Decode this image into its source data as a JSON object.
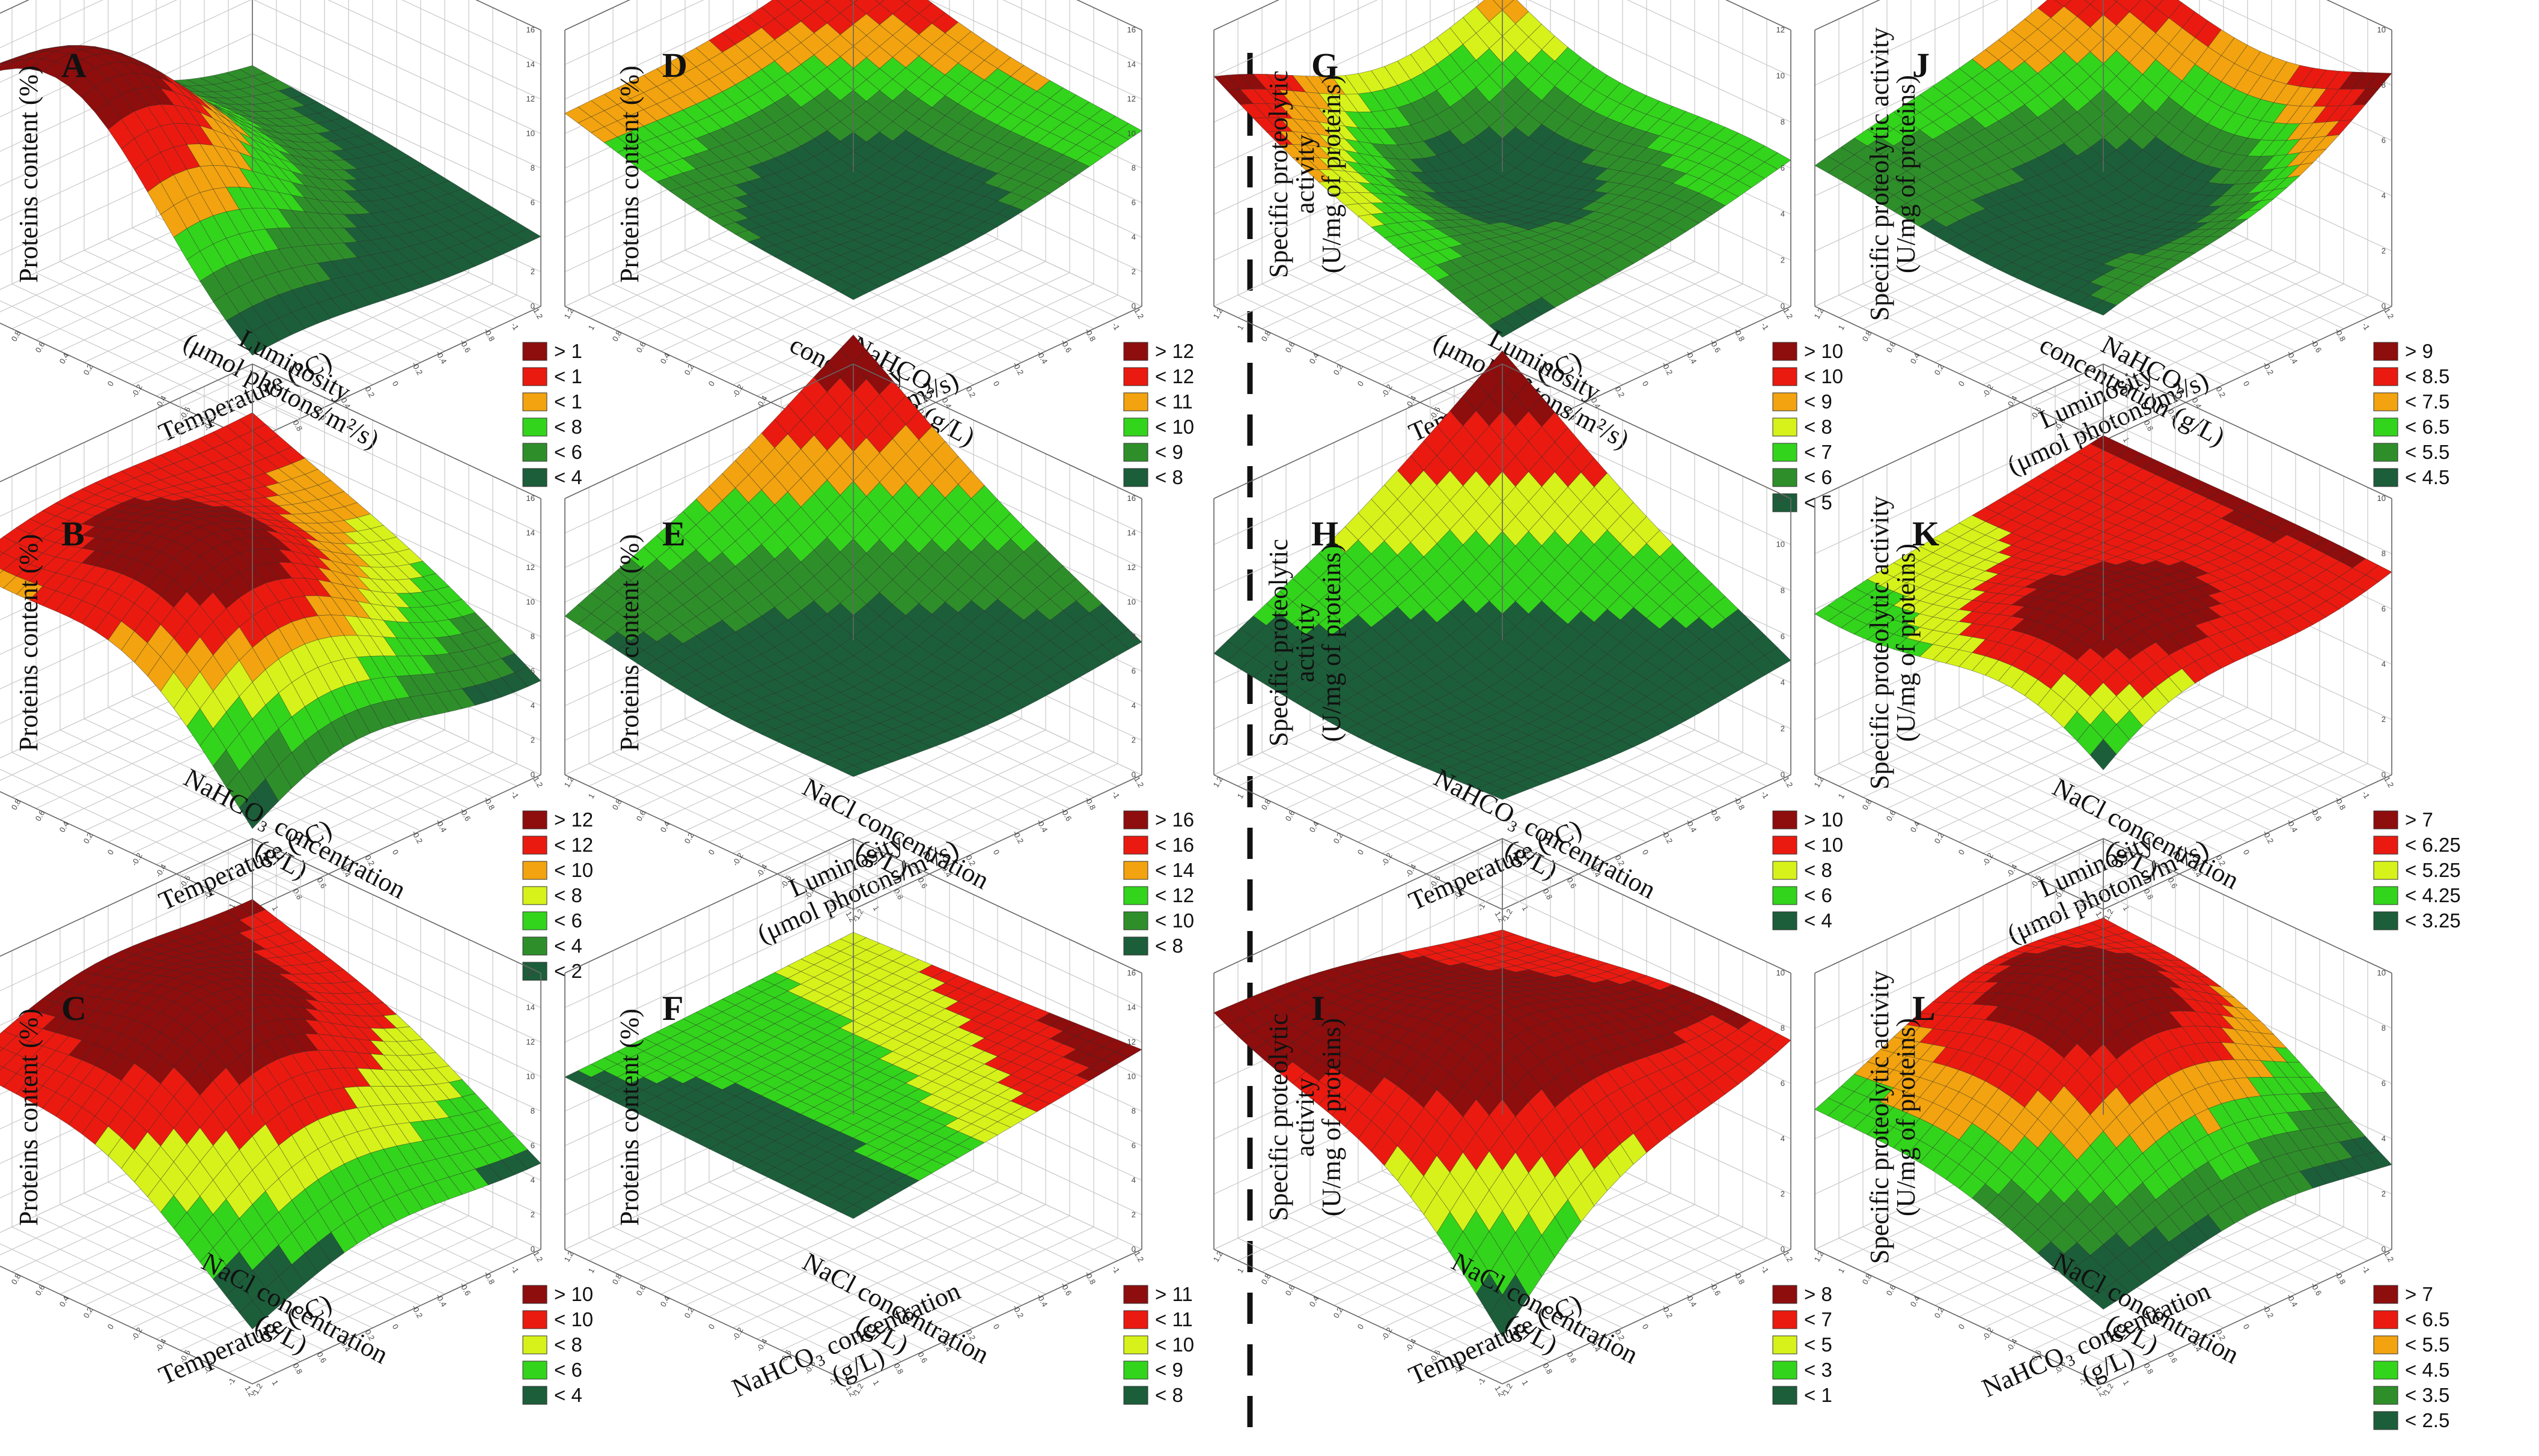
{
  "divider": "dashed-vertical",
  "colors": {
    "c0": "#1c5e3a",
    "c1": "#2e8f2a",
    "c2": "#33d41c",
    "c3": "#d6f21a",
    "c4": "#f2a30f",
    "c5": "#ea1a10",
    "c6": "#8e0d0d",
    "grid": "#c8c8c8",
    "axis": "#666666"
  },
  "chart_data": [
    {
      "id": "A",
      "type": "surface3d",
      "title": "A",
      "ylabel": "Proteins content (%)",
      "xlabel": "Temperature (°C)",
      "zlabel": "Luminosity (μmol photons/m²/s)",
      "zlabel_lines": [
        "Luminosity",
        "(μmol photons/m²/s)"
      ],
      "ylim": [
        0,
        16
      ],
      "yticks": [
        "0",
        "2",
        "4",
        "6",
        "8",
        "10",
        "12",
        "14",
        "16"
      ],
      "xticks": [
        "-1.2",
        "-1",
        "-0.8",
        "-0.6",
        "-0.4",
        "-0.2",
        "0",
        "0.2",
        "0.4",
        "0.6",
        "0.8",
        "1",
        "1.2"
      ],
      "zticks": [
        "-1.2",
        "-1",
        "-0.8",
        "-0.6",
        "-0.4",
        "-0.2",
        "0",
        "0.2",
        "0.4",
        "0.6",
        "0.8",
        "1",
        "1.2"
      ],
      "legend": [
        "> 1",
        "< 1",
        "< 1",
        "< 8",
        "< 6",
        "< 4"
      ],
      "corners": {
        "front": 3.5,
        "left": 4.0,
        "right": 7.5,
        "back": 6.0
      },
      "peak": {
        "u": -0.3,
        "v": 0.8,
        "value": 16.0
      },
      "surface_gridlines": "dark"
    },
    {
      "id": "B",
      "type": "surface3d",
      "title": "B",
      "ylabel": "Proteins content (%)",
      "xlabel": "Temperature (°C)",
      "zlabel": "NaHCO₃ concentration (g/L)",
      "zlabel_lines": [
        "NaHCO₃ concentration",
        "(g/L)"
      ],
      "ylim": [
        0,
        16
      ],
      "yticks": [
        "0",
        "2",
        "4",
        "6",
        "8",
        "10",
        "12",
        "14",
        "16"
      ],
      "xticks": [
        "-1.2",
        "-1",
        "-0.8",
        "-0.6",
        "-0.4",
        "-0.2",
        "0",
        "0.2",
        "0.4",
        "0.6",
        "0.8",
        "1",
        "1.2"
      ],
      "zticks": [
        "-1.2",
        "-1",
        "-0.8",
        "-0.6",
        "-0.4",
        "-0.2",
        "0",
        "0.2",
        "0.4",
        "0.6",
        "0.8",
        "1",
        "1.2"
      ],
      "legend": [
        "> 12",
        "< 12",
        "< 10",
        "< 8",
        "< 6",
        "< 4",
        "< 2"
      ],
      "corners": {
        "front": 2.0,
        "left": 5.0,
        "right": 11.0,
        "back": 13.0
      },
      "peak": {
        "u": 0.2,
        "v": 0.4,
        "value": 14.5
      },
      "surface_gridlines": "dark"
    },
    {
      "id": "C",
      "type": "surface3d",
      "title": "C",
      "ylabel": "Proteins content (%)",
      "xlabel": "Temperature (°C)",
      "zlabel": "NaCl concentration (g/L)",
      "zlabel_lines": [
        "NaCl concentration",
        "(g/L)"
      ],
      "ylim": [
        0,
        16
      ],
      "yticks": [
        "0",
        "2",
        "4",
        "6",
        "8",
        "10",
        "12",
        "14",
        "16"
      ],
      "xticks": [
        "-1.2",
        "-1",
        "-0.8",
        "-0.6",
        "-0.4",
        "-0.2",
        "0",
        "0.2",
        "0.4",
        "0.6",
        "0.8",
        "1",
        "1.2"
      ],
      "zticks": [
        "-1.2",
        "-1",
        "-0.8",
        "-0.6",
        "-0.4",
        "-0.2",
        "0",
        "0.2",
        "0.4",
        "0.6",
        "0.8",
        "1",
        "1.2"
      ],
      "legend": [
        "> 10",
        "< 10",
        "< 8",
        "< 6",
        "< 4"
      ],
      "corners": {
        "front": 2.0,
        "left": 4.5,
        "right": 9.5,
        "back": 12.0
      },
      "peak": {
        "u": 0.0,
        "v": 0.2,
        "value": 14.0
      },
      "surface_gridlines": "dark"
    },
    {
      "id": "D",
      "type": "surface3d",
      "title": "D",
      "ylabel": "Proteins content (%)",
      "xlabel": "Luminosity (μmol photons/m²/s)",
      "xlabel_lines": [
        "Luminosity",
        "(μmol photons/m²/s)"
      ],
      "zlabel": "NaHCO₃ concentration (g/L)",
      "zlabel_lines": [
        "NaHCO₃",
        "concentration (g/L)"
      ],
      "ylim": [
        0,
        16
      ],
      "yticks": [
        "0",
        "2",
        "4",
        "6",
        "8",
        "10",
        "12",
        "14",
        "16"
      ],
      "xticks": [
        "-1.2",
        "-1",
        "-0.8",
        "-0.6",
        "-0.4",
        "-0.2",
        "0",
        "0.2",
        "0.4",
        "0.6",
        "0.8",
        "1",
        "1.2"
      ],
      "zticks": [
        "-1.2",
        "-1",
        "-0.8",
        "-0.6",
        "-0.4",
        "-0.2",
        "0",
        "0.2",
        "0.4",
        "0.6",
        "0.8",
        "1",
        "1.2"
      ],
      "legend": [
        "> 12",
        "< 12",
        "< 11",
        "< 10",
        "< 9",
        "< 8"
      ],
      "corners": {
        "front": 8.5,
        "left": 10.5,
        "right": 11.5,
        "back": 13.5
      },
      "peak": {
        "u": 0.0,
        "v": 0.0,
        "value": 8.0
      },
      "surface_gridlines": "dark"
    },
    {
      "id": "E",
      "type": "surface3d",
      "title": "E",
      "ylabel": "Proteins content (%)",
      "xlabel": "Luminosity (μmol photons/m²/s)",
      "xlabel_lines": [
        "Luminosity",
        "(μmol photons/m²/s)"
      ],
      "zlabel": "NaCl concentration (g/L)",
      "zlabel_lines": [
        "NaCl concentration",
        "(g/L)"
      ],
      "ylim": [
        0,
        16
      ],
      "yticks": [
        "0",
        "2",
        "4",
        "6",
        "8",
        "10",
        "12",
        "14",
        "16"
      ],
      "xticks": [
        "-1.2",
        "-1",
        "-0.8",
        "-0.6",
        "-0.4",
        "-0.2",
        "0",
        "0.2",
        "0.4",
        "0.6",
        "0.8",
        "1",
        "1.2"
      ],
      "zticks": [
        "-1.2",
        "-1",
        "-0.8",
        "-0.6",
        "-0.4",
        "-0.2",
        "0",
        "0.2",
        "0.4",
        "0.6",
        "0.8",
        "1",
        "1.2"
      ],
      "legend": [
        "> 16",
        "< 16",
        "< 14",
        "< 12",
        "< 10",
        "< 8"
      ],
      "corners": {
        "front": 8.0,
        "left": 8.0,
        "right": 9.5,
        "back": 18.0
      },
      "peak": {
        "u": 0.0,
        "v": 0.0,
        "value": 8.0
      },
      "surface_gridlines": "dark"
    },
    {
      "id": "F",
      "type": "surface3d",
      "title": "F",
      "ylabel": "Proteins content (%)",
      "xlabel": "NaHCO₃ concentration (g/L)",
      "xlabel_lines": [
        "NaHCO₃ concentration",
        "(g/L)"
      ],
      "zlabel": "NaCl concentration (g/L)",
      "zlabel_lines": [
        "NaCl concentration",
        "(g/L)"
      ],
      "ylim": [
        0,
        16
      ],
      "yticks": [
        "0",
        "2",
        "4",
        "6",
        "8",
        "10",
        "12",
        "14",
        "16"
      ],
      "xticks": [
        "-1.2",
        "-1",
        "-0.8",
        "-0.6",
        "-0.4",
        "-0.2",
        "0",
        "0.2",
        "0.4",
        "0.6",
        "0.8",
        "1",
        "1.2"
      ],
      "zticks": [
        "-1.2",
        "-1",
        "-0.8",
        "-0.6",
        "-0.4",
        "-0.2",
        "0",
        "0.2",
        "0.4",
        "0.6",
        "0.8",
        "1",
        "1.2"
      ],
      "legend": [
        "> 11",
        "< 11",
        "< 10",
        "< 9",
        "< 8"
      ],
      "corners": {
        "front": 9.6,
        "left": 11.6,
        "right": 10.0,
        "back": 10.6
      },
      "peak": {
        "u": 0.0,
        "v": 0.0,
        "value": 10.2
      },
      "surface_gridlines": "dark"
    },
    {
      "id": "G",
      "type": "surface3d",
      "title": "G",
      "ylabel": "Specific proteolytic activity (U/mg of proteins)",
      "ylabel_lines": [
        "Specific proteolytic",
        "activity",
        "(U/mg of proteins)"
      ],
      "xlabel": "Temperature (°C)",
      "zlabel": "Luminosity (μmol photons/m²/s)",
      "zlabel_lines": [
        "Luminosity",
        "(μmol photons/m²/s)"
      ],
      "ylim": [
        0,
        12
      ],
      "yticks": [
        "0",
        "2",
        "4",
        "6",
        "8",
        "10",
        "12"
      ],
      "xticks": [
        "-1.2",
        "-1",
        "-0.8",
        "-0.6",
        "-0.4",
        "-0.2",
        "0",
        "0.2",
        "0.4",
        "0.6",
        "0.8",
        "1",
        "1.2"
      ],
      "zticks": [
        "-1.2",
        "-1",
        "-0.8",
        "-0.6",
        "-0.4",
        "-0.2",
        "0",
        "0.2",
        "0.4",
        "0.6",
        "0.8",
        "1",
        "1.2"
      ],
      "legend": [
        "> 10",
        "< 10",
        "< 9",
        "< 8",
        "< 7",
        "< 6",
        "< 5"
      ],
      "corners": {
        "front": 4.6,
        "left": 6.6,
        "right": 10.6,
        "back": 9.6
      },
      "peak": {
        "u": -0.4,
        "v": -0.2,
        "value": 4.2
      },
      "surface_gridlines": "dark"
    },
    {
      "id": "H",
      "type": "surface3d",
      "title": "H",
      "ylabel": "Specific proteolytic activity (U/mg of proteins)",
      "ylabel_lines": [
        "Specific proteolytic",
        "activity",
        "(U/mg of proteins)"
      ],
      "xlabel": "Temperature (°C)",
      "zlabel": "NaHCO₃ concentration (g/L)",
      "zlabel_lines": [
        "NaHCO₃ concentration",
        "(g/L)"
      ],
      "ylim": [
        0,
        12
      ],
      "yticks": [
        "0",
        "2",
        "4",
        "6",
        "8",
        "10",
        "12"
      ],
      "xticks": [
        "-1.2",
        "-1",
        "-0.8",
        "-0.6",
        "-0.4",
        "-0.2",
        "0",
        "0.2",
        "0.4",
        "0.6",
        "0.8",
        "1",
        "1.2"
      ],
      "zticks": [
        "-1.2",
        "-1",
        "-0.8",
        "-0.6",
        "-0.4",
        "-0.2",
        "0",
        "0.2",
        "0.4",
        "0.6",
        "0.8",
        "1",
        "1.2"
      ],
      "legend": [
        "> 10",
        "< 10",
        "< 8",
        "< 6",
        "< 4"
      ],
      "corners": {
        "front": 5.0,
        "left": 5.2,
        "right": 5.5,
        "back": 12.8
      },
      "peak": {
        "u": 0.0,
        "v": 0.0,
        "value": 5.0
      },
      "surface_gridlines": "dark"
    },
    {
      "id": "I",
      "type": "surface3d",
      "title": "I",
      "ylabel": "Specific proteolytic activity (U/mg of proteins)",
      "ylabel_lines": [
        "Specific proteolytic",
        "activity",
        "(U/mg of proteins)"
      ],
      "xlabel": "Temperature (°C)",
      "zlabel": "NaCl concentration (g/L)",
      "zlabel_lines": [
        "NaCl concentration",
        "(g/L)"
      ],
      "ylim": [
        0,
        10
      ],
      "yticks": [
        "0",
        "2",
        "4",
        "6",
        "8",
        "10"
      ],
      "xticks": [
        "-1.2",
        "-1",
        "-0.8",
        "-0.6",
        "-0.4",
        "-0.2",
        "0",
        "0.2",
        "0.4",
        "0.6",
        "0.8",
        "1",
        "1.2"
      ],
      "zticks": [
        "-1.2",
        "-1",
        "-0.8",
        "-0.6",
        "-0.4",
        "-0.2",
        "0",
        "0.2",
        "0.4",
        "0.6",
        "0.8",
        "1",
        "1.2"
      ],
      "legend": [
        "> 8",
        "< 7",
        "< 5",
        "< 3",
        "< 1"
      ],
      "corners": {
        "front": 0.3,
        "left": 7.2,
        "right": 8.2,
        "back": 6.6
      },
      "peak": {
        "u": 0.3,
        "v": 0.3,
        "value": 8.6
      },
      "surface_gridlines": "dark"
    },
    {
      "id": "J",
      "type": "surface3d",
      "title": "J",
      "ylabel": "Specific proteolytic activity (U/mg of proteins)",
      "ylabel_lines": [
        "Specific proteolytic activity",
        "(U/mg of proteins)"
      ],
      "xlabel": "Luminosity (μmol photons/m²/s)",
      "xlabel_lines": [
        "Luminosity",
        "(μmol photons/m²/s)"
      ],
      "zlabel": "NaHCO₃ concentration (g/L)",
      "zlabel_lines": [
        "NaHCO₃",
        "concentration (g/L)"
      ],
      "ylim": [
        0,
        10
      ],
      "yticks": [
        "0",
        "2",
        "4",
        "6",
        "8",
        "10"
      ],
      "xticks": [
        "-1.2",
        "-1",
        "-0.8",
        "-0.6",
        "-0.4",
        "-0.2",
        "0",
        "0.2",
        "0.4",
        "0.6",
        "0.8",
        "1",
        "1.2"
      ],
      "zticks": [
        "-1.2",
        "-1",
        "-0.8",
        "-0.6",
        "-0.4",
        "-0.2",
        "0",
        "0.2",
        "0.4",
        "0.6",
        "0.8",
        "1",
        "1.2"
      ],
      "legend": [
        "> 9",
        "< 8.5",
        "< 7.5",
        "< 6.5",
        "< 5.5",
        "< 4.5"
      ],
      "corners": {
        "front": 4.8,
        "left": 9.4,
        "right": 5.2,
        "back": 8.4
      },
      "peak": {
        "u": 0.2,
        "v": -0.3,
        "value": 4.2
      },
      "surface_gridlines": "dark"
    },
    {
      "id": "K",
      "type": "surface3d",
      "title": "K",
      "ylabel": "Specific proteolytic activity (U/mg of proteins)",
      "ylabel_lines": [
        "Specific proteolytic activity",
        "(U/mg of proteins)"
      ],
      "xlabel": "Luminosity (μmol photons/m²/s)",
      "xlabel_lines": [
        "Luminosity",
        "(μmol photons/m²/s)"
      ],
      "zlabel": "NaCl concentration (g/L)",
      "zlabel_lines": [
        "NaCl concentration",
        "(g/L)"
      ],
      "ylim": [
        0,
        10
      ],
      "yticks": [
        "0",
        "2",
        "4",
        "6",
        "8",
        "10"
      ],
      "xticks": [
        "-1.2",
        "-1",
        "-0.8",
        "-0.6",
        "-0.4",
        "-0.2",
        "0",
        "0.2",
        "0.4",
        "0.6",
        "0.8",
        "1",
        "1.2"
      ],
      "zticks": [
        "-1.2",
        "-1",
        "-0.8",
        "-0.6",
        "-0.4",
        "-0.2",
        "0",
        "0.2",
        "0.4",
        "0.6",
        "0.8",
        "1",
        "1.2"
      ],
      "legend": [
        "> 7",
        "< 6.25",
        "< 5.25",
        "< 4.25",
        "< 3.25"
      ],
      "corners": {
        "front": 3.0,
        "left": 7.2,
        "right": 5.6,
        "back": 7.4
      },
      "peak": {
        "u": 0.5,
        "v": 0.6,
        "value": 7.6
      },
      "surface_gridlines": "dark"
    },
    {
      "id": "L",
      "type": "surface3d",
      "title": "L",
      "ylabel": "Specific proteolytic activity (U/mg of proteins)",
      "ylabel_lines": [
        "Specific proteolytic activity",
        "(U/mg of proteins)"
      ],
      "xlabel": "NaHCO₃ concentration (g/L)",
      "xlabel_lines": [
        "NaHCO₃ concentration",
        "(g/L)"
      ],
      "zlabel": "NaCl concentration (g/L)",
      "zlabel_lines": [
        "NaCl concentration",
        "(g/L)"
      ],
      "ylim": [
        0,
        10
      ],
      "yticks": [
        "0",
        "2",
        "4",
        "6",
        "8",
        "10"
      ],
      "xticks": [
        "-1.2",
        "-1",
        "-0.8",
        "-0.6",
        "-0.4",
        "-0.2",
        "0",
        "0.2",
        "0.4",
        "0.6",
        "0.8",
        "1",
        "1.2"
      ],
      "zticks": [
        "-1.2",
        "-1",
        "-0.8",
        "-0.6",
        "-0.4",
        "-0.2",
        "0",
        "0.2",
        "0.4",
        "0.6",
        "0.8",
        "1",
        "1.2"
      ],
      "legend": [
        "> 7",
        "< 6.5",
        "< 5.5",
        "< 4.5",
        "< 3.5",
        "< 2.5"
      ],
      "corners": {
        "front": 2.4,
        "left": 2.6,
        "right": 4.6,
        "back": 6.4
      },
      "peak": {
        "u": -0.1,
        "v": -0.1,
        "value": 8.6
      },
      "surface_gridlines": "dark"
    }
  ]
}
